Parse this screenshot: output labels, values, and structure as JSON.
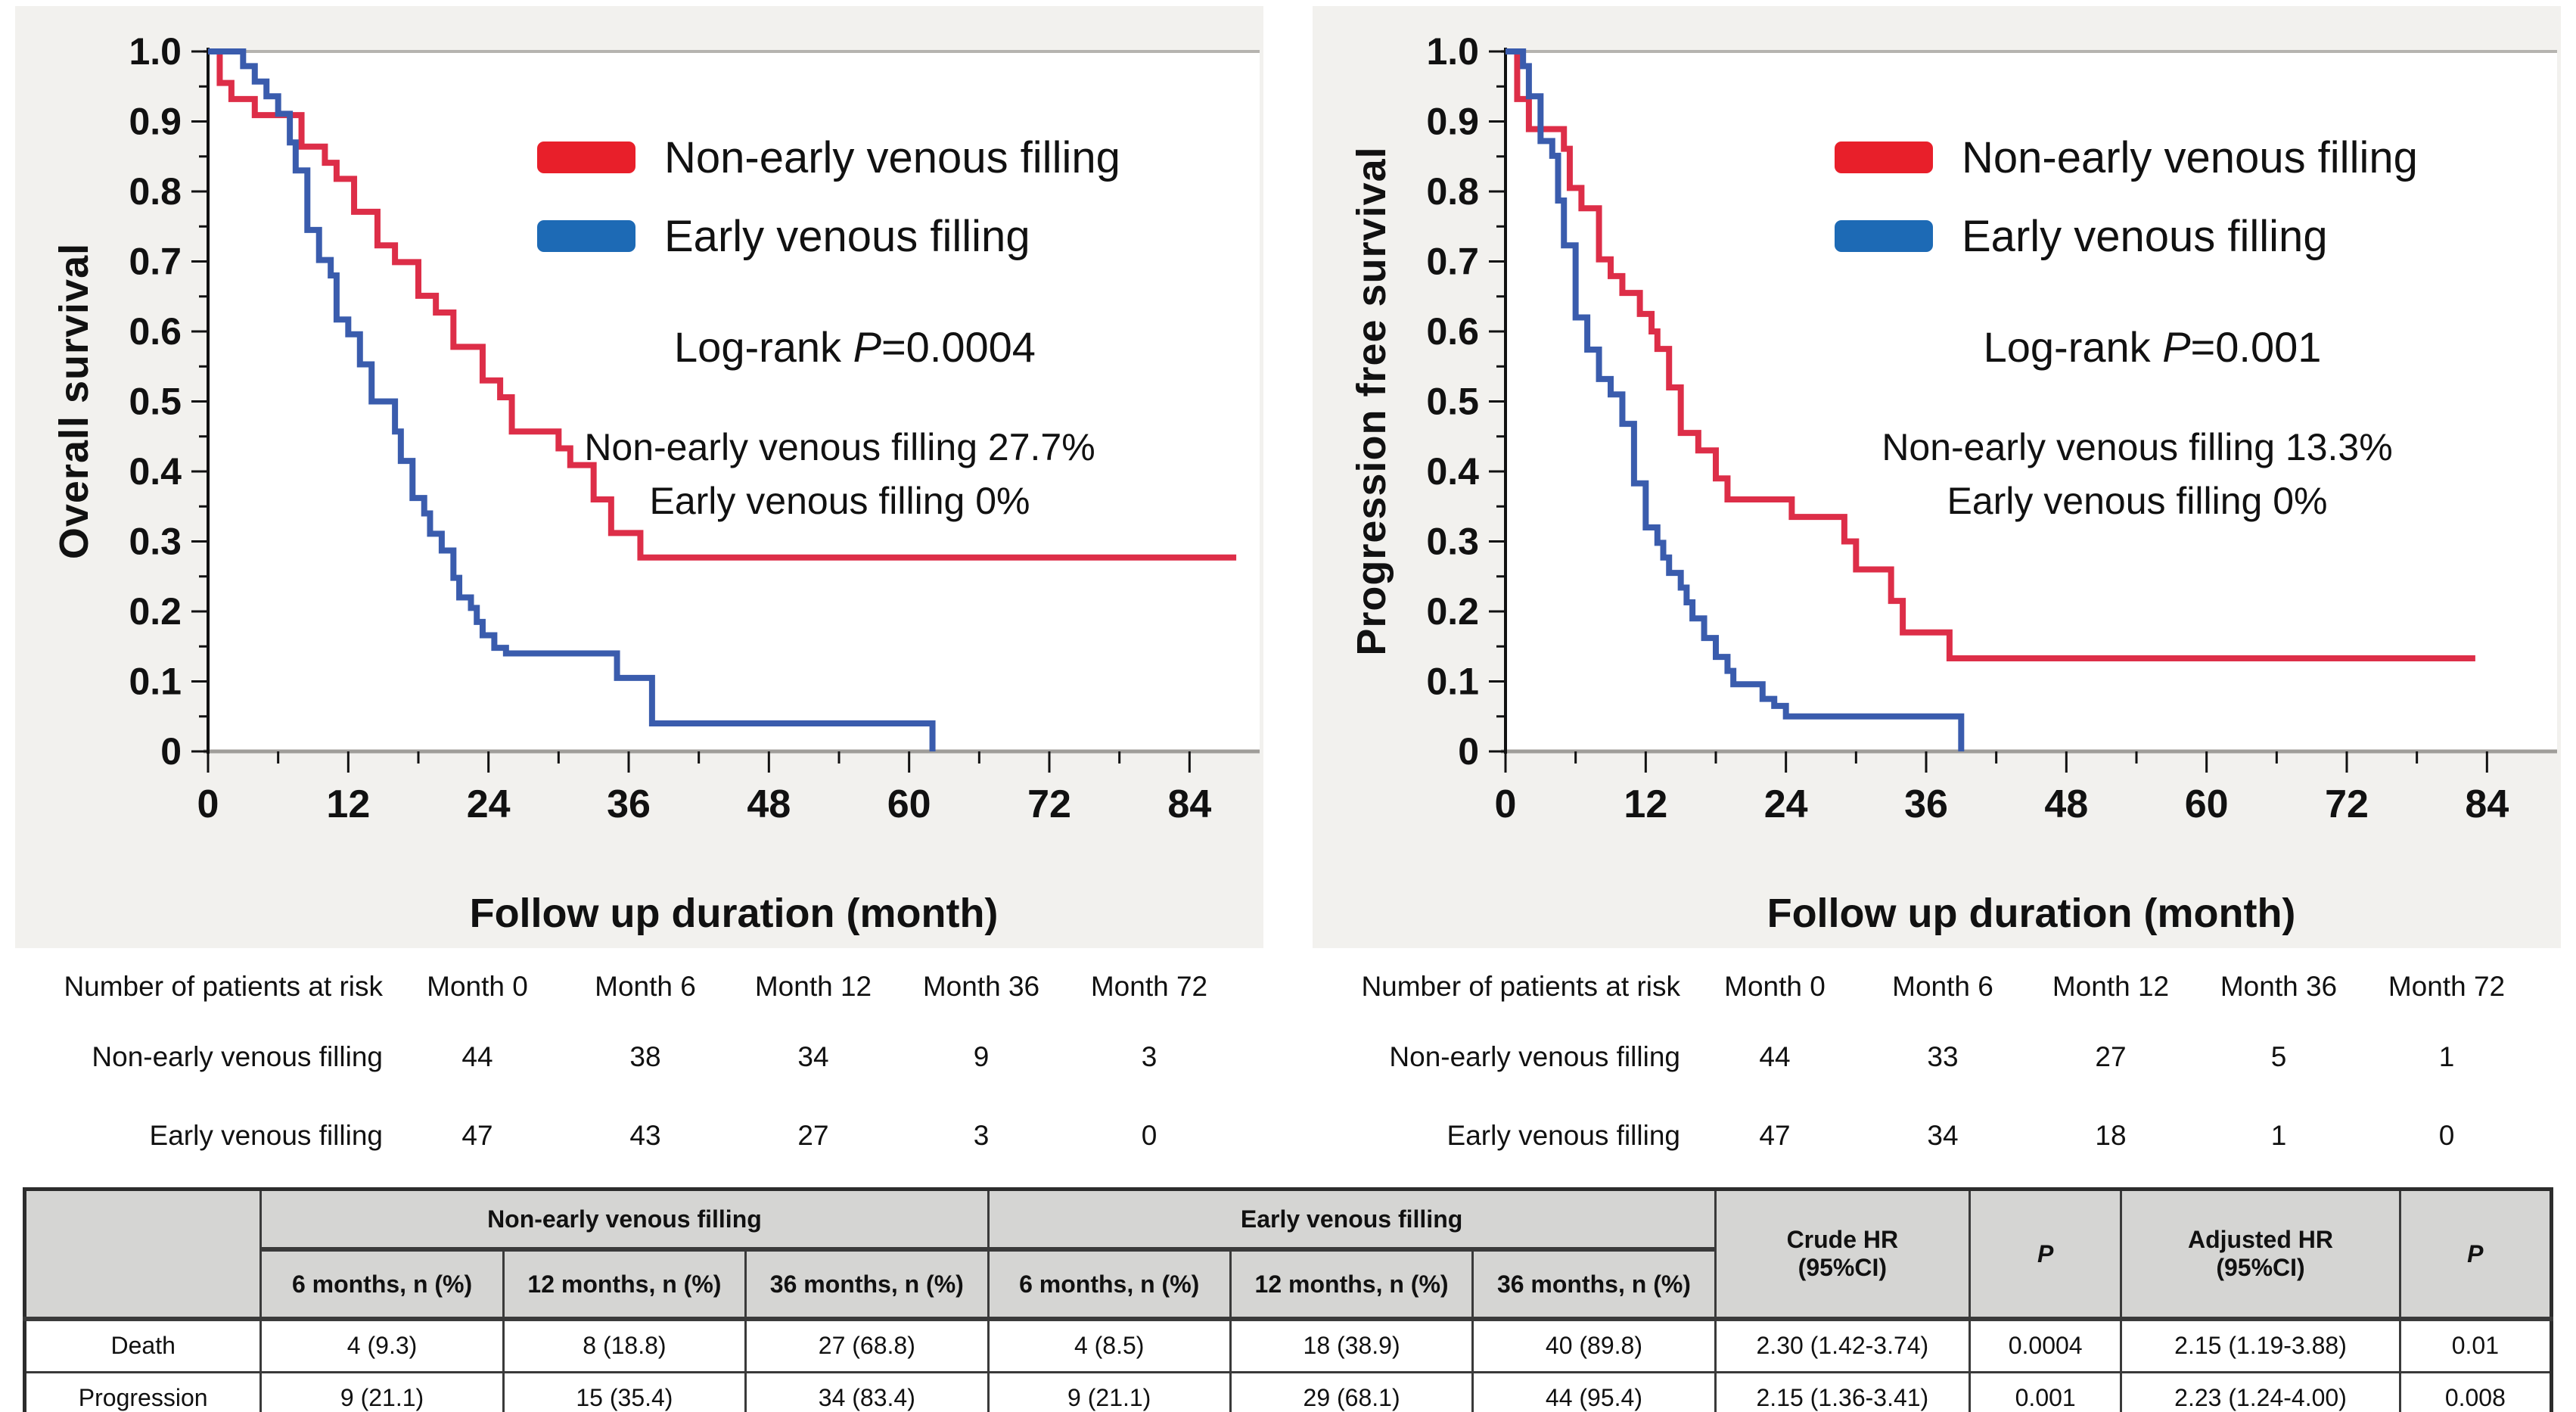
{
  "figure": {
    "background": "#f2f1ee",
    "accent_red": "#e81f2a",
    "accent_blue": "#1d6ab5"
  },
  "chart_data": [
    {
      "type": "line",
      "subtype": "kaplan-meier-step",
      "ylabel": "Overall survival",
      "xlabel": "Follow up duration (month)",
      "xlim": [
        0,
        90
      ],
      "ylim": [
        0,
        1.0
      ],
      "xticks": [
        0,
        12,
        24,
        36,
        48,
        60,
        72,
        84
      ],
      "ytick_step": 0.1,
      "minor_ytick_step": 0.05,
      "minor_xtick_step": 6,
      "grid": false,
      "legend_position": "inside-top-right",
      "annotation": {
        "logrank_label": "Log-rank ",
        "p_symbol": "P",
        "p_value": "=0.0004",
        "rate_nonearly": "Non-early venous filling 27.7%",
        "rate_early": "Early venous filling 0%"
      },
      "series": [
        {
          "name": "Non-early venous filling",
          "color": "#e81f2a",
          "line_color": "#dd2e48",
          "steps": [
            [
              0,
              1.0
            ],
            [
              1,
              0.955
            ],
            [
              2,
              0.932
            ],
            [
              4,
              0.909
            ],
            [
              8,
              0.864
            ],
            [
              10,
              0.841
            ],
            [
              11,
              0.818
            ],
            [
              12.5,
              0.771
            ],
            [
              14.5,
              0.723
            ],
            [
              16,
              0.699
            ],
            [
              18,
              0.651
            ],
            [
              19.5,
              0.627
            ],
            [
              21,
              0.578
            ],
            [
              23.5,
              0.53
            ],
            [
              25,
              0.506
            ],
            [
              26,
              0.457
            ],
            [
              30,
              0.433
            ],
            [
              31,
              0.409
            ],
            [
              33,
              0.36
            ],
            [
              34.5,
              0.312
            ],
            [
              37,
              0.277
            ],
            [
              88,
              0.277
            ]
          ]
        },
        {
          "name": "Early venous filling",
          "color": "#1d6ab5",
          "line_color": "#3a5cad",
          "steps": [
            [
              0,
              1.0
            ],
            [
              3,
              0.979
            ],
            [
              4,
              0.957
            ],
            [
              5,
              0.936
            ],
            [
              6,
              0.911
            ],
            [
              7,
              0.87
            ],
            [
              7.5,
              0.83
            ],
            [
              8.5,
              0.745
            ],
            [
              9.5,
              0.702
            ],
            [
              10.5,
              0.68
            ],
            [
              11,
              0.617
            ],
            [
              12,
              0.596
            ],
            [
              13,
              0.553
            ],
            [
              14,
              0.5
            ],
            [
              16,
              0.457
            ],
            [
              16.5,
              0.415
            ],
            [
              17.5,
              0.362
            ],
            [
              18.5,
              0.34
            ],
            [
              19,
              0.311
            ],
            [
              20,
              0.287
            ],
            [
              21,
              0.248
            ],
            [
              21.5,
              0.22
            ],
            [
              22.5,
              0.205
            ],
            [
              23,
              0.185
            ],
            [
              23.5,
              0.166
            ],
            [
              24.5,
              0.148
            ],
            [
              25.5,
              0.14
            ],
            [
              35,
              0.105
            ],
            [
              38,
              0.04
            ],
            [
              62,
              0.0
            ]
          ]
        }
      ]
    },
    {
      "type": "line",
      "subtype": "kaplan-meier-step",
      "ylabel": "Progression free survival",
      "xlabel": "Follow up duration (month)",
      "xlim": [
        0,
        90
      ],
      "ylim": [
        0,
        1.0
      ],
      "xticks": [
        0,
        12,
        24,
        36,
        48,
        60,
        72,
        84
      ],
      "ytick_step": 0.1,
      "minor_ytick_step": 0.05,
      "minor_xtick_step": 6,
      "grid": false,
      "legend_position": "inside-top-right",
      "annotation": {
        "logrank_label": "Log-rank ",
        "p_symbol": "P",
        "p_value": "=0.001",
        "rate_nonearly": "Non-early venous filling 13.3%",
        "rate_early": "Early venous filling 0%"
      },
      "series": [
        {
          "name": "Non-early venous filling",
          "color": "#e81f2a",
          "line_color": "#dd2e48",
          "steps": [
            [
              0,
              1.0
            ],
            [
              1,
              0.932
            ],
            [
              2,
              0.889
            ],
            [
              5,
              0.861
            ],
            [
              5.5,
              0.805
            ],
            [
              6.5,
              0.776
            ],
            [
              8,
              0.703
            ],
            [
              9,
              0.679
            ],
            [
              10,
              0.655
            ],
            [
              11.5,
              0.625
            ],
            [
              12.5,
              0.6
            ],
            [
              13,
              0.575
            ],
            [
              14,
              0.52
            ],
            [
              15,
              0.455
            ],
            [
              16.5,
              0.43
            ],
            [
              18,
              0.39
            ],
            [
              19,
              0.36
            ],
            [
              24.5,
              0.335
            ],
            [
              29,
              0.3
            ],
            [
              30,
              0.26
            ],
            [
              33,
              0.215
            ],
            [
              34,
              0.17
            ],
            [
              38,
              0.133
            ],
            [
              83,
              0.133
            ]
          ]
        },
        {
          "name": "Early venous filling",
          "color": "#1d6ab5",
          "line_color": "#3a5cad",
          "steps": [
            [
              0,
              1.0
            ],
            [
              1.5,
              0.979
            ],
            [
              2,
              0.936
            ],
            [
              3,
              0.872
            ],
            [
              4,
              0.851
            ],
            [
              4.5,
              0.787
            ],
            [
              5,
              0.723
            ],
            [
              6,
              0.62
            ],
            [
              7,
              0.574
            ],
            [
              8,
              0.532
            ],
            [
              9,
              0.51
            ],
            [
              10,
              0.468
            ],
            [
              11,
              0.383
            ],
            [
              12,
              0.32
            ],
            [
              13,
              0.298
            ],
            [
              13.5,
              0.277
            ],
            [
              14,
              0.255
            ],
            [
              15,
              0.234
            ],
            [
              15.5,
              0.213
            ],
            [
              16,
              0.19
            ],
            [
              17,
              0.162
            ],
            [
              18,
              0.135
            ],
            [
              19,
              0.115
            ],
            [
              19.5,
              0.096
            ],
            [
              22,
              0.075
            ],
            [
              23,
              0.065
            ],
            [
              24,
              0.05
            ],
            [
              39,
              0.0
            ]
          ]
        }
      ]
    }
  ],
  "risk_tables": [
    {
      "title": "Number of patients at risk",
      "columns": [
        "Month 0",
        "Month 6",
        "Month 12",
        "Month 36",
        "Month 72"
      ],
      "rows": [
        {
          "label": "Non-early venous filling",
          "values": [
            "44",
            "38",
            "34",
            "9",
            "3"
          ]
        },
        {
          "label": "Early venous filling",
          "values": [
            "47",
            "43",
            "27",
            "3",
            "0"
          ]
        }
      ]
    },
    {
      "title": "Number of patients at risk",
      "columns": [
        "Month 0",
        "Month 6",
        "Month 12",
        "Month 36",
        "Month 72"
      ],
      "rows": [
        {
          "label": "Non-early venous filling",
          "values": [
            "44",
            "33",
            "27",
            "5",
            "1"
          ]
        },
        {
          "label": "Early venous filling",
          "values": [
            "47",
            "34",
            "18",
            "1",
            "0"
          ]
        }
      ]
    }
  ],
  "summary_table": {
    "group_headers": [
      "Non-early venous filling",
      "Early venous filling"
    ],
    "sub_headers": [
      "6 months, n (%)",
      "12 months, n (%)",
      "36 months, n (%)",
      "6 months, n (%)",
      "12 months, n (%)",
      "36 months, n (%)"
    ],
    "stat_headers": [
      "Crude HR\n(95%CI)",
      "P",
      "Adjusted HR\n(95%CI)",
      "P"
    ],
    "rows": [
      {
        "label": "Death",
        "values": [
          "4 (9.3)",
          "8 (18.8)",
          "27 (68.8)",
          "4 (8.5)",
          "18 (38.9)",
          "40 (89.8)",
          "2.30 (1.42-3.74)",
          "0.0004",
          "2.15 (1.19-3.88)",
          "0.01"
        ]
      },
      {
        "label": "Progression",
        "values": [
          "9 (21.1)",
          "15 (35.4)",
          "34 (83.4)",
          "9 (21.1)",
          "29 (68.1)",
          "44 (95.4)",
          "2.15 (1.36-3.41)",
          "0.001",
          "2.23 (1.24-4.00)",
          "0.008"
        ]
      }
    ]
  }
}
